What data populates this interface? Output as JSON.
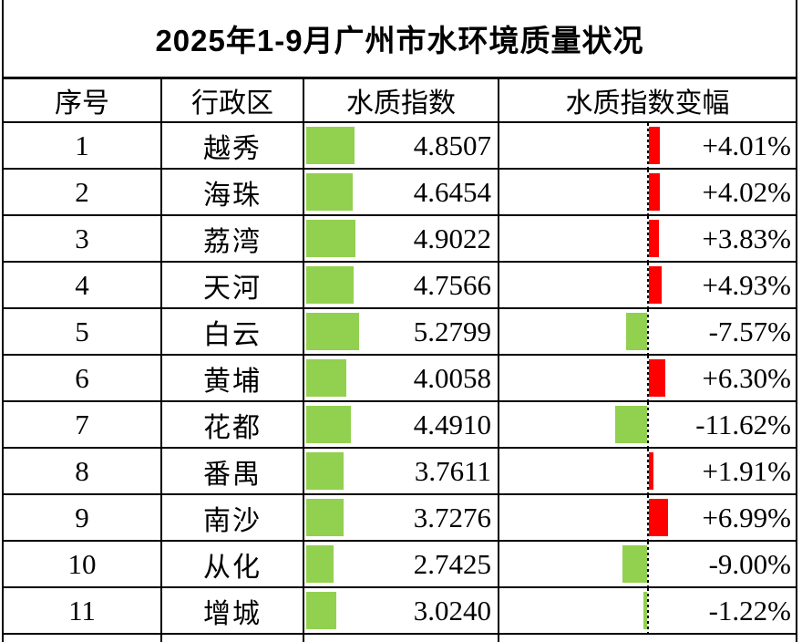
{
  "title": "2025年1-9月广州市水环境质量状况",
  "table": {
    "headers": [
      "序号",
      "行政区",
      "水质指数",
      "水质指数变幅"
    ],
    "rows": [
      {
        "no": "1",
        "district": "越秀",
        "index": "4.8507",
        "index_value": 4.8507,
        "change": "+4.01%",
        "change_value": 4.01
      },
      {
        "no": "2",
        "district": "海珠",
        "index": "4.6454",
        "index_value": 4.6454,
        "change": "+4.02%",
        "change_value": 4.02
      },
      {
        "no": "3",
        "district": "荔湾",
        "index": "4.9022",
        "index_value": 4.9022,
        "change": "+3.83%",
        "change_value": 3.83
      },
      {
        "no": "4",
        "district": "天河",
        "index": "4.7566",
        "index_value": 4.7566,
        "change": "+4.93%",
        "change_value": 4.93
      },
      {
        "no": "5",
        "district": "白云",
        "index": "5.2799",
        "index_value": 5.2799,
        "change": "-7.57%",
        "change_value": -7.57
      },
      {
        "no": "6",
        "district": "黄埔",
        "index": "4.0058",
        "index_value": 4.0058,
        "change": "+6.30%",
        "change_value": 6.3
      },
      {
        "no": "7",
        "district": "花都",
        "index": "4.4910",
        "index_value": 4.491,
        "change": "-11.62%",
        "change_value": -11.62
      },
      {
        "no": "8",
        "district": "番禺",
        "index": "3.7611",
        "index_value": 3.7611,
        "change": "+1.91%",
        "change_value": 1.91
      },
      {
        "no": "9",
        "district": "南沙",
        "index": "3.7276",
        "index_value": 3.7276,
        "change": "+6.99%",
        "change_value": 6.99
      },
      {
        "no": "10",
        "district": "从化",
        "index": "2.7425",
        "index_value": 2.7425,
        "change": "-9.00%",
        "change_value": -9.0
      },
      {
        "no": "11",
        "district": "增城",
        "index": "3.0240",
        "index_value": 3.024,
        "change": "-1.22%",
        "change_value": -1.22
      }
    ]
  },
  "colors": {
    "index_bar": "#92d050",
    "positive_change_bar": "#ff0000",
    "negative_change_bar": "#92d050",
    "border": "#000000",
    "background": "#ffffff"
  },
  "chart_data": {
    "type": "table",
    "title": "2025年1-9月广州市水环境质量状况",
    "columns": [
      "序号",
      "行政区",
      "水质指数",
      "水质指数变幅"
    ],
    "districts": [
      "越秀",
      "海珠",
      "荔湾",
      "天河",
      "白云",
      "黄埔",
      "花都",
      "番禺",
      "南沙",
      "从化",
      "增城"
    ],
    "series": [
      {
        "name": "水质指数",
        "values": [
          4.8507,
          4.6454,
          4.9022,
          4.7566,
          5.2799,
          4.0058,
          4.491,
          3.7611,
          3.7276,
          2.7425,
          3.024
        ]
      },
      {
        "name": "水质指数变幅(%)",
        "values": [
          4.01,
          4.02,
          3.83,
          4.93,
          -7.57,
          6.3,
          -11.62,
          1.91,
          6.99,
          -9.0,
          -1.22
        ]
      }
    ],
    "notes": "水质指数 column shows green data bars proportional to value; 水质指数变幅 column shows bars from a dashed center axis: red bars to the right for increases, green bars to the left for decreases."
  }
}
